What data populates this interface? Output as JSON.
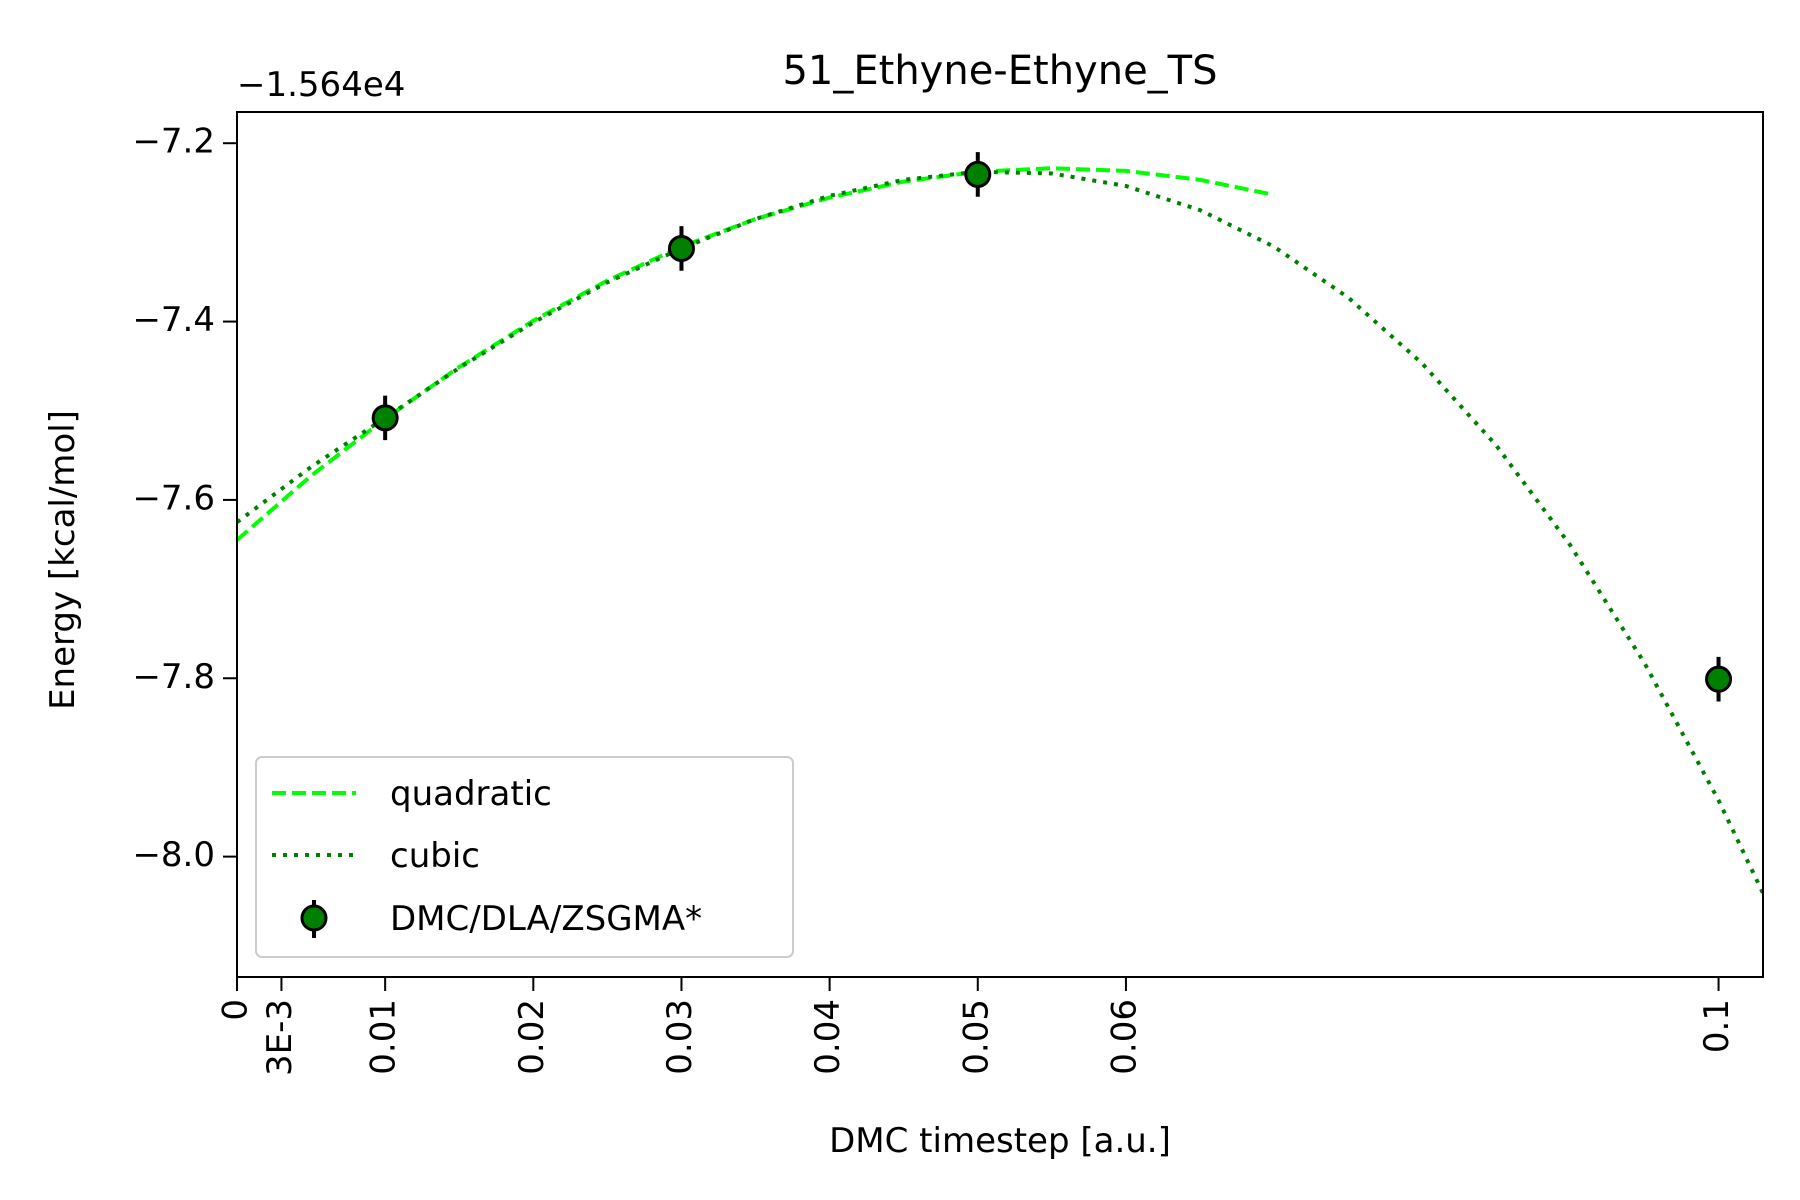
{
  "chart_data": {
    "type": "line",
    "title": "51_Ethyne-Ethyne_TS",
    "xlabel": "DMC timestep [a.u.]",
    "ylabel": "Energy [kcal/mol]",
    "y_offset_label": "−1.564e4",
    "xlim": [
      0,
      0.103
    ],
    "ylim": [
      -8.135,
      -7.165
    ],
    "xticks": [
      {
        "value": 0,
        "label": "0"
      },
      {
        "value": 0.003,
        "label": "3E-3"
      },
      {
        "value": 0.01,
        "label": "0.01"
      },
      {
        "value": 0.02,
        "label": "0.02"
      },
      {
        "value": 0.03,
        "label": "0.03"
      },
      {
        "value": 0.04,
        "label": "0.04"
      },
      {
        "value": 0.05,
        "label": "0.05"
      },
      {
        "value": 0.06,
        "label": "0.06"
      },
      {
        "value": 0.1,
        "label": "0.1"
      }
    ],
    "yticks": [
      {
        "value": -7.2,
        "label": "−7.2"
      },
      {
        "value": -7.4,
        "label": "−7.4"
      },
      {
        "value": -7.6,
        "label": "−7.6"
      },
      {
        "value": -7.8,
        "label": "−7.8"
      },
      {
        "value": -8.0,
        "label": "−8.0"
      }
    ],
    "grid": false,
    "legend_position": "lower-left",
    "series": [
      {
        "name": "quadratic",
        "style": "dashed",
        "color": "#00ff00",
        "x": [
          0,
          0.005,
          0.01,
          0.015,
          0.02,
          0.025,
          0.03,
          0.035,
          0.04,
          0.045,
          0.05,
          0.055,
          0.06,
          0.065,
          0.07
        ],
        "y": [
          -7.645,
          -7.573,
          -7.509,
          -7.451,
          -7.399,
          -7.354,
          -7.316,
          -7.285,
          -7.261,
          -7.243,
          -7.232,
          -7.228,
          -7.231,
          -7.241,
          -7.258
        ]
      },
      {
        "name": "cubic",
        "style": "dotted",
        "color": "#008000",
        "x": [
          0,
          0.005,
          0.01,
          0.015,
          0.02,
          0.025,
          0.03,
          0.035,
          0.04,
          0.045,
          0.05,
          0.055,
          0.06,
          0.065,
          0.07,
          0.075,
          0.08,
          0.085,
          0.09,
          0.095,
          0.1,
          0.103
        ],
        "y": [
          -7.625,
          -7.563,
          -7.508,
          -7.452,
          -7.401,
          -7.356,
          -7.318,
          -7.285,
          -7.259,
          -7.241,
          -7.232,
          -7.234,
          -7.248,
          -7.275,
          -7.316,
          -7.373,
          -7.447,
          -7.539,
          -7.651,
          -7.783,
          -7.937,
          -8.041
        ]
      },
      {
        "name": "DMC/DLA/ZSGMA*",
        "style": "errorbar-points",
        "color": "#008000",
        "x": [
          0.01,
          0.03,
          0.05,
          0.1
        ],
        "y": [
          -7.508,
          -7.318,
          -7.235,
          -7.801
        ],
        "yerr": [
          0.025,
          0.025,
          0.025,
          0.025
        ]
      }
    ]
  }
}
